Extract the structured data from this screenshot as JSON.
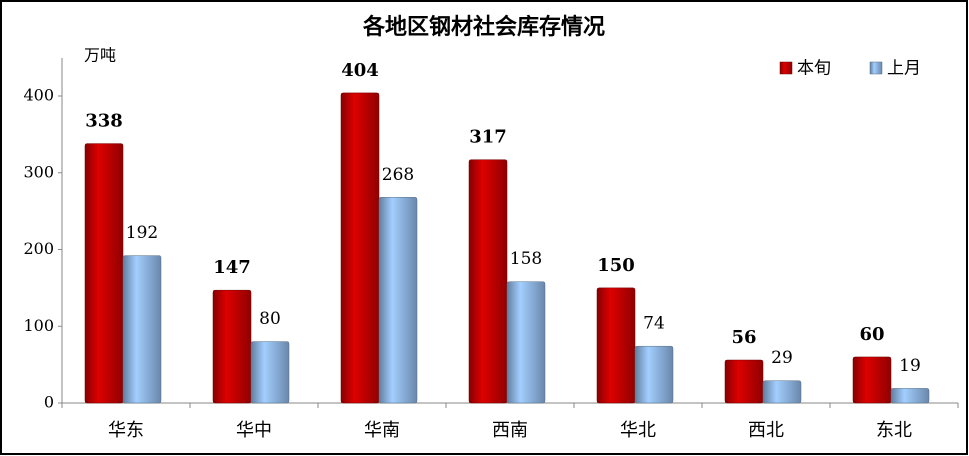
{
  "chart_data": {
    "type": "bar",
    "title": "各地区钢材社会库存情况",
    "y_label": "万吨",
    "categories": [
      "华东",
      "华中",
      "华南",
      "西南",
      "华北",
      "西北",
      "东北"
    ],
    "series": [
      {
        "name": "本旬",
        "color": "#c00000",
        "values": [
          338,
          147,
          404,
          317,
          150,
          56,
          60
        ]
      },
      {
        "name": "上月",
        "color": "#8db4e2",
        "values": [
          192,
          80,
          268,
          158,
          74,
          29,
          19
        ]
      }
    ],
    "ylim": [
      0,
      450
    ],
    "yticks": [
      0,
      100,
      200,
      300,
      400
    ],
    "grid": false,
    "legend": "top-right"
  }
}
